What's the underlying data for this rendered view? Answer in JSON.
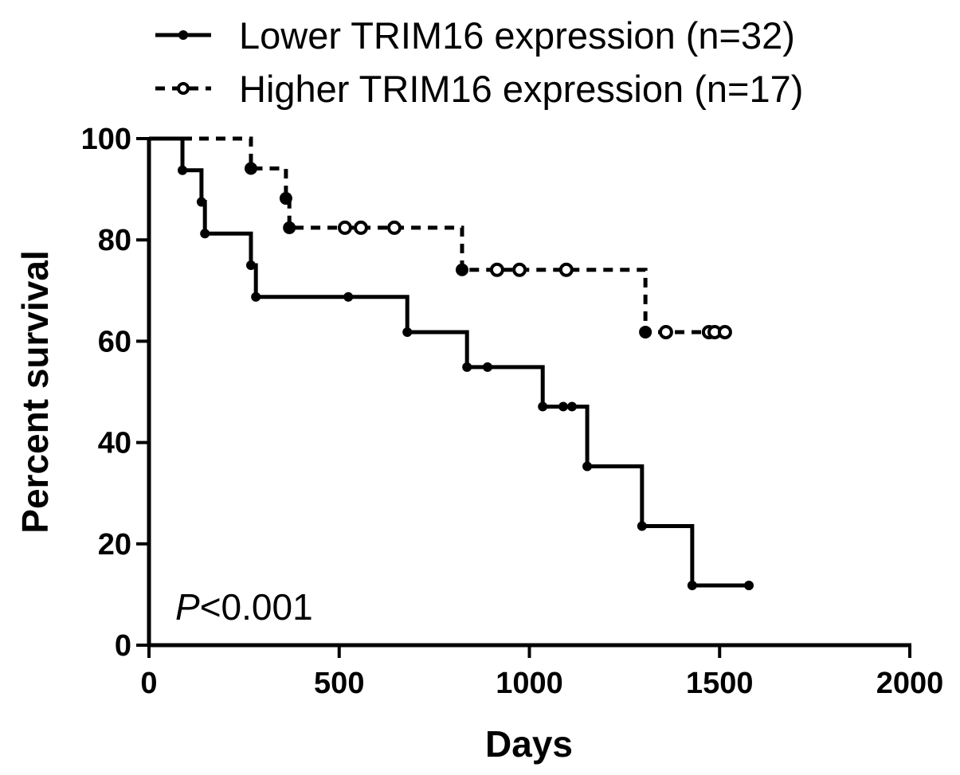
{
  "chart_data": {
    "type": "line",
    "subtype": "kaplan-meier",
    "xlabel": "Days",
    "ylabel": "Percent survival",
    "xlim": [
      0,
      2000
    ],
    "ylim": [
      0,
      100
    ],
    "xticks": [
      0,
      500,
      1000,
      1500,
      2000
    ],
    "yticks": [
      0,
      20,
      40,
      60,
      80,
      100
    ],
    "xtick_labels": [
      "0",
      "500",
      "1000",
      "1500",
      "2000"
    ],
    "ytick_labels": [
      "0",
      "20",
      "40",
      "60",
      "80",
      "100"
    ],
    "grid": false,
    "legend_position": "top",
    "annotation": {
      "italic": "P",
      "rest": "<0.001"
    },
    "series": [
      {
        "name": "Lower TRIM16 expression (n=32)",
        "style": "solid",
        "color": "#000000",
        "steps": [
          [
            0,
            100
          ],
          [
            88,
            93.75
          ],
          [
            138,
            87.5
          ],
          [
            147,
            81.25
          ],
          [
            268,
            75
          ],
          [
            281,
            68.75
          ],
          [
            679,
            61.8
          ],
          [
            836,
            54.9
          ],
          [
            1035,
            47.1
          ],
          [
            1152,
            35.3
          ],
          [
            1296,
            23.5
          ],
          [
            1428,
            11.8
          ]
        ],
        "end": 1577,
        "censored": [
          [
            524,
            68.75
          ],
          [
            890,
            54.9
          ],
          [
            1089,
            47.1
          ],
          [
            1112,
            47.1
          ],
          [
            1577,
            11.8
          ]
        ]
      },
      {
        "name": "Higher TRIM16 expression (n=17)",
        "style": "dashed",
        "color": "#000000",
        "steps": [
          [
            0,
            100
          ],
          [
            268,
            94.1
          ],
          [
            360,
            88.2
          ],
          [
            369,
            82.4
          ],
          [
            823,
            74.1
          ],
          [
            1305,
            61.8
          ]
        ],
        "end": 1514,
        "censored": [
          [
            515,
            82.4
          ],
          [
            557,
            82.4
          ],
          [
            645,
            82.4
          ],
          [
            915,
            74.1
          ],
          [
            974,
            74.1
          ],
          [
            1097,
            74.1
          ],
          [
            1359,
            61.8
          ],
          [
            1472,
            61.8
          ],
          [
            1487,
            61.8
          ],
          [
            1514,
            61.8
          ]
        ]
      }
    ]
  }
}
